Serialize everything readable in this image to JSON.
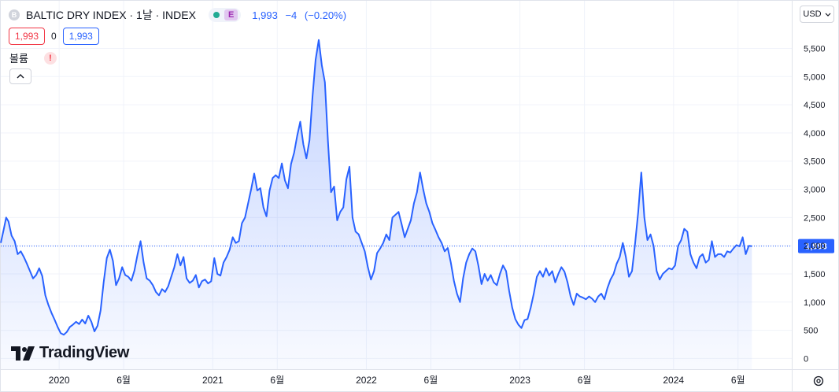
{
  "symbol": {
    "icon_letter": "B",
    "title": "BALTIC DRY INDEX · 1날 · INDEX",
    "market_status": "open",
    "e_badge": "E",
    "last": "1,993",
    "change": "−4",
    "change_pct": "(−0.20%)"
  },
  "trade": {
    "sell": "1,993",
    "spread": "0",
    "buy": "1,993"
  },
  "volume": {
    "label": "볼륨",
    "warning": "!"
  },
  "controls": {
    "collapse_icon": "^",
    "currency": "USD",
    "currency_chevron": "⌄"
  },
  "branding": {
    "name": "TradingView"
  },
  "colors": {
    "line": "#2962ff",
    "accent_blue": "#2962ff",
    "sell_red": "#f23645"
  },
  "chart_data": {
    "type": "area",
    "title": "BALTIC DRY INDEX",
    "currency": "USD",
    "last_price": 1993,
    "last_price_label": "1,993",
    "y_ticks": [
      0,
      500,
      1000,
      1500,
      2000,
      2500,
      3000,
      3500,
      4000,
      4500,
      5000,
      5500
    ],
    "y_tick_labels": [
      "0",
      "500",
      "1,000",
      "1,500",
      "2,000",
      "2,500",
      "3,000",
      "3,500",
      "4,000",
      "4,500",
      "5,000",
      "5,500"
    ],
    "ylim": [
      -100,
      5900
    ],
    "x_ticks": [
      {
        "x": 2020.0,
        "label": "2020"
      },
      {
        "x": 2020.42,
        "label": "6월"
      },
      {
        "x": 2021.0,
        "label": "2021"
      },
      {
        "x": 2021.42,
        "label": "6월"
      },
      {
        "x": 2022.0,
        "label": "2022"
      },
      {
        "x": 2022.42,
        "label": "6월"
      },
      {
        "x": 2023.0,
        "label": "2023"
      },
      {
        "x": 2023.42,
        "label": "6월"
      },
      {
        "x": 2024.0,
        "label": "2024"
      },
      {
        "x": 2024.42,
        "label": "6월"
      }
    ],
    "xlim": [
      2019.62,
      2024.77
    ],
    "grid": true,
    "series": [
      {
        "values": [
          [
            2019.62,
            2050
          ],
          [
            2019.64,
            2300
          ],
          [
            2019.655,
            2500
          ],
          [
            2019.67,
            2430
          ],
          [
            2019.69,
            2180
          ],
          [
            2019.71,
            2080
          ],
          [
            2019.73,
            1850
          ],
          [
            2019.75,
            1900
          ],
          [
            2019.77,
            1800
          ],
          [
            2019.79,
            1680
          ],
          [
            2019.81,
            1550
          ],
          [
            2019.83,
            1420
          ],
          [
            2019.85,
            1480
          ],
          [
            2019.87,
            1600
          ],
          [
            2019.89,
            1460
          ],
          [
            2019.91,
            1120
          ],
          [
            2019.93,
            950
          ],
          [
            2019.95,
            810
          ],
          [
            2019.97,
            690
          ],
          [
            2019.99,
            560
          ],
          [
            2020.01,
            450
          ],
          [
            2020.03,
            420
          ],
          [
            2020.05,
            470
          ],
          [
            2020.07,
            560
          ],
          [
            2020.09,
            600
          ],
          [
            2020.11,
            650
          ],
          [
            2020.13,
            610
          ],
          [
            2020.15,
            690
          ],
          [
            2020.17,
            620
          ],
          [
            2020.19,
            760
          ],
          [
            2020.21,
            650
          ],
          [
            2020.23,
            480
          ],
          [
            2020.25,
            580
          ],
          [
            2020.27,
            850
          ],
          [
            2020.29,
            1350
          ],
          [
            2020.31,
            1780
          ],
          [
            2020.33,
            1930
          ],
          [
            2020.35,
            1730
          ],
          [
            2020.37,
            1300
          ],
          [
            2020.39,
            1420
          ],
          [
            2020.41,
            1620
          ],
          [
            2020.43,
            1480
          ],
          [
            2020.45,
            1450
          ],
          [
            2020.47,
            1380
          ],
          [
            2020.49,
            1560
          ],
          [
            2020.51,
            1840
          ],
          [
            2020.53,
            2080
          ],
          [
            2020.55,
            1700
          ],
          [
            2020.57,
            1420
          ],
          [
            2020.59,
            1380
          ],
          [
            2020.61,
            1300
          ],
          [
            2020.63,
            1180
          ],
          [
            2020.65,
            1120
          ],
          [
            2020.67,
            1230
          ],
          [
            2020.69,
            1180
          ],
          [
            2020.71,
            1280
          ],
          [
            2020.73,
            1450
          ],
          [
            2020.75,
            1620
          ],
          [
            2020.77,
            1850
          ],
          [
            2020.79,
            1650
          ],
          [
            2020.81,
            1800
          ],
          [
            2020.83,
            1420
          ],
          [
            2020.85,
            1340
          ],
          [
            2020.87,
            1380
          ],
          [
            2020.89,
            1480
          ],
          [
            2020.91,
            1260
          ],
          [
            2020.93,
            1370
          ],
          [
            2020.95,
            1400
          ],
          [
            2020.97,
            1330
          ],
          [
            2020.99,
            1370
          ],
          [
            2021.01,
            1780
          ],
          [
            2021.03,
            1500
          ],
          [
            2021.05,
            1470
          ],
          [
            2021.07,
            1700
          ],
          [
            2021.09,
            1800
          ],
          [
            2021.11,
            1930
          ],
          [
            2021.13,
            2150
          ],
          [
            2021.15,
            2050
          ],
          [
            2021.17,
            2080
          ],
          [
            2021.19,
            2400
          ],
          [
            2021.21,
            2500
          ],
          [
            2021.23,
            2750
          ],
          [
            2021.25,
            3000
          ],
          [
            2021.27,
            3280
          ],
          [
            2021.29,
            2980
          ],
          [
            2021.31,
            3020
          ],
          [
            2021.33,
            2680
          ],
          [
            2021.35,
            2520
          ],
          [
            2021.37,
            2980
          ],
          [
            2021.39,
            3200
          ],
          [
            2021.41,
            3250
          ],
          [
            2021.43,
            3200
          ],
          [
            2021.45,
            3460
          ],
          [
            2021.47,
            3160
          ],
          [
            2021.49,
            3020
          ],
          [
            2021.51,
            3450
          ],
          [
            2021.53,
            3650
          ],
          [
            2021.55,
            3950
          ],
          [
            2021.57,
            4200
          ],
          [
            2021.59,
            3800
          ],
          [
            2021.61,
            3550
          ],
          [
            2021.63,
            3870
          ],
          [
            2021.65,
            4650
          ],
          [
            2021.67,
            5300
          ],
          [
            2021.69,
            5650
          ],
          [
            2021.71,
            5200
          ],
          [
            2021.73,
            4900
          ],
          [
            2021.75,
            3850
          ],
          [
            2021.77,
            2950
          ],
          [
            2021.79,
            3050
          ],
          [
            2021.81,
            2450
          ],
          [
            2021.83,
            2600
          ],
          [
            2021.85,
            2680
          ],
          [
            2021.87,
            3180
          ],
          [
            2021.89,
            3400
          ],
          [
            2021.91,
            2500
          ],
          [
            2021.93,
            2250
          ],
          [
            2021.95,
            2200
          ],
          [
            2021.97,
            2050
          ],
          [
            2021.99,
            1900
          ],
          [
            2022.01,
            1620
          ],
          [
            2022.03,
            1400
          ],
          [
            2022.05,
            1550
          ],
          [
            2022.07,
            1870
          ],
          [
            2022.09,
            1950
          ],
          [
            2022.11,
            2050
          ],
          [
            2022.13,
            2200
          ],
          [
            2022.15,
            2100
          ],
          [
            2022.17,
            2500
          ],
          [
            2022.19,
            2550
          ],
          [
            2022.21,
            2600
          ],
          [
            2022.23,
            2380
          ],
          [
            2022.25,
            2150
          ],
          [
            2022.27,
            2300
          ],
          [
            2022.29,
            2450
          ],
          [
            2022.31,
            2750
          ],
          [
            2022.33,
            2950
          ],
          [
            2022.35,
            3300
          ],
          [
            2022.37,
            3000
          ],
          [
            2022.39,
            2750
          ],
          [
            2022.41,
            2600
          ],
          [
            2022.43,
            2400
          ],
          [
            2022.45,
            2280
          ],
          [
            2022.47,
            2150
          ],
          [
            2022.49,
            2050
          ],
          [
            2022.51,
            1900
          ],
          [
            2022.53,
            1960
          ],
          [
            2022.55,
            1700
          ],
          [
            2022.57,
            1380
          ],
          [
            2022.59,
            1150
          ],
          [
            2022.61,
            1000
          ],
          [
            2022.63,
            1420
          ],
          [
            2022.65,
            1700
          ],
          [
            2022.67,
            1850
          ],
          [
            2022.69,
            1950
          ],
          [
            2022.71,
            1900
          ],
          [
            2022.73,
            1640
          ],
          [
            2022.75,
            1320
          ],
          [
            2022.77,
            1500
          ],
          [
            2022.79,
            1380
          ],
          [
            2022.81,
            1480
          ],
          [
            2022.83,
            1350
          ],
          [
            2022.85,
            1300
          ],
          [
            2022.87,
            1500
          ],
          [
            2022.89,
            1650
          ],
          [
            2022.91,
            1550
          ],
          [
            2022.93,
            1200
          ],
          [
            2022.95,
            900
          ],
          [
            2022.97,
            700
          ],
          [
            2022.99,
            600
          ],
          [
            2023.01,
            540
          ],
          [
            2023.03,
            680
          ],
          [
            2023.05,
            700
          ],
          [
            2023.07,
            900
          ],
          [
            2023.09,
            1150
          ],
          [
            2023.11,
            1450
          ],
          [
            2023.13,
            1550
          ],
          [
            2023.15,
            1450
          ],
          [
            2023.17,
            1600
          ],
          [
            2023.19,
            1470
          ],
          [
            2023.21,
            1550
          ],
          [
            2023.23,
            1350
          ],
          [
            2023.25,
            1500
          ],
          [
            2023.27,
            1620
          ],
          [
            2023.29,
            1540
          ],
          [
            2023.31,
            1350
          ],
          [
            2023.33,
            1100
          ],
          [
            2023.35,
            950
          ],
          [
            2023.37,
            1150
          ],
          [
            2023.39,
            1100
          ],
          [
            2023.41,
            1080
          ],
          [
            2023.43,
            1050
          ],
          [
            2023.45,
            1100
          ],
          [
            2023.47,
            1060
          ],
          [
            2023.49,
            1000
          ],
          [
            2023.51,
            1100
          ],
          [
            2023.53,
            1150
          ],
          [
            2023.55,
            1050
          ],
          [
            2023.57,
            1250
          ],
          [
            2023.59,
            1400
          ],
          [
            2023.61,
            1500
          ],
          [
            2023.63,
            1680
          ],
          [
            2023.65,
            1800
          ],
          [
            2023.67,
            2050
          ],
          [
            2023.69,
            1800
          ],
          [
            2023.71,
            1450
          ],
          [
            2023.73,
            1550
          ],
          [
            2023.75,
            2050
          ],
          [
            2023.77,
            2600
          ],
          [
            2023.79,
            3300
          ],
          [
            2023.81,
            2500
          ],
          [
            2023.83,
            2100
          ],
          [
            2023.85,
            2200
          ],
          [
            2023.87,
            2000
          ],
          [
            2023.89,
            1550
          ],
          [
            2023.91,
            1400
          ],
          [
            2023.93,
            1500
          ],
          [
            2023.95,
            1550
          ],
          [
            2023.97,
            1600
          ],
          [
            2023.99,
            1580
          ],
          [
            2024.01,
            1650
          ],
          [
            2024.03,
            2000
          ],
          [
            2024.05,
            2100
          ],
          [
            2024.07,
            2300
          ],
          [
            2024.09,
            2250
          ],
          [
            2024.11,
            1850
          ],
          [
            2024.13,
            1700
          ],
          [
            2024.15,
            1600
          ],
          [
            2024.17,
            1800
          ],
          [
            2024.19,
            1850
          ],
          [
            2024.21,
            1700
          ],
          [
            2024.23,
            1750
          ],
          [
            2024.25,
            2080
          ],
          [
            2024.27,
            1800
          ],
          [
            2024.29,
            1850
          ],
          [
            2024.31,
            1850
          ],
          [
            2024.33,
            1800
          ],
          [
            2024.35,
            1900
          ],
          [
            2024.37,
            1880
          ],
          [
            2024.39,
            1950
          ],
          [
            2024.41,
            2010
          ],
          [
            2024.43,
            1990
          ],
          [
            2024.45,
            2150
          ],
          [
            2024.47,
            1850
          ],
          [
            2024.49,
            2000
          ],
          [
            2024.51,
            1993
          ]
        ]
      }
    ]
  }
}
